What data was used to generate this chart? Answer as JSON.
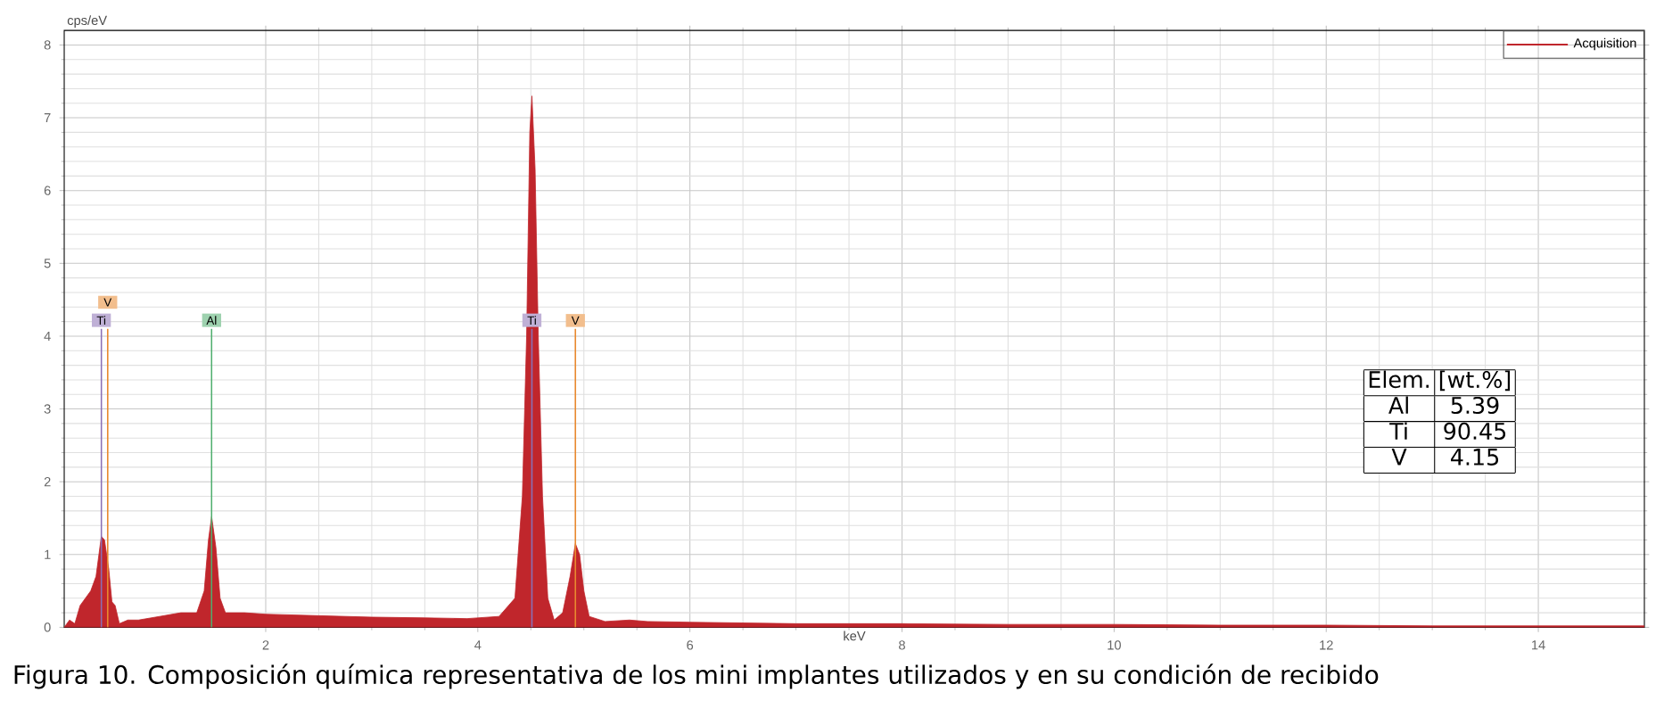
{
  "chart_data": {
    "type": "area",
    "xlabel": "keV",
    "ylabel": "cps/eV",
    "xlim": [
      0.1,
      15
    ],
    "ylim": [
      0,
      8.2
    ],
    "xticks": [
      2,
      4,
      6,
      8,
      10,
      12,
      14
    ],
    "yticks": [
      0,
      1,
      2,
      3,
      4,
      5,
      6,
      7,
      8
    ],
    "grid": true,
    "legend": "top right",
    "series": [
      {
        "name": "Acquisition",
        "color": "#c0262c",
        "x": [
          0.1,
          0.15,
          0.2,
          0.25,
          0.3,
          0.35,
          0.4,
          0.45,
          0.48,
          0.52,
          0.55,
          0.58,
          0.62,
          0.7,
          0.8,
          1.0,
          1.2,
          1.35,
          1.42,
          1.46,
          1.49,
          1.53,
          1.57,
          1.62,
          1.8,
          2.0,
          2.5,
          3.0,
          3.5,
          3.9,
          4.2,
          4.35,
          4.42,
          4.46,
          4.49,
          4.51,
          4.54,
          4.57,
          4.61,
          4.66,
          4.72,
          4.8,
          4.87,
          4.92,
          4.96,
          5.0,
          5.05,
          5.2,
          5.43,
          5.6,
          6,
          7,
          8,
          9,
          10,
          11,
          12,
          13,
          14,
          15
        ],
        "values": [
          0,
          0.1,
          0.05,
          0.3,
          0.4,
          0.5,
          0.7,
          1.25,
          1.2,
          0.8,
          0.35,
          0.3,
          0.05,
          0.1,
          0.1,
          0.15,
          0.2,
          0.2,
          0.5,
          1.2,
          1.52,
          1.1,
          0.4,
          0.2,
          0.2,
          0.18,
          0.16,
          0.14,
          0.13,
          0.12,
          0.15,
          0.4,
          1.8,
          4.0,
          6.8,
          7.3,
          6.3,
          4.0,
          1.8,
          0.4,
          0.1,
          0.2,
          0.7,
          1.15,
          1.0,
          0.5,
          0.15,
          0.08,
          0.1,
          0.08,
          0.07,
          0.05,
          0.05,
          0.04,
          0.04,
          0.03,
          0.03,
          0.02,
          0.02,
          0.02
        ]
      }
    ],
    "ref_lines": [
      {
        "axis": "x",
        "value": 0.45,
        "label": "Ti",
        "color": "#8a6fb5"
      },
      {
        "axis": "x",
        "value": 0.51,
        "label": "V",
        "color": "#e8892f"
      },
      {
        "axis": "x",
        "value": 1.49,
        "label": "Al",
        "color": "#4fae6e"
      },
      {
        "axis": "x",
        "value": 4.51,
        "label": "Ti",
        "color": "#8a6fb5"
      },
      {
        "axis": "x",
        "value": 4.92,
        "label": "V",
        "color": "#e8892f"
      }
    ],
    "annotations": [
      "Elem.",
      "[wt.%]",
      "Al",
      "5.39",
      "Ti",
      "90.45",
      "V",
      "4.15",
      "Figura 10. Composición química representativa de los mini implantes utilizados y en su condición de recibido"
    ]
  }
}
